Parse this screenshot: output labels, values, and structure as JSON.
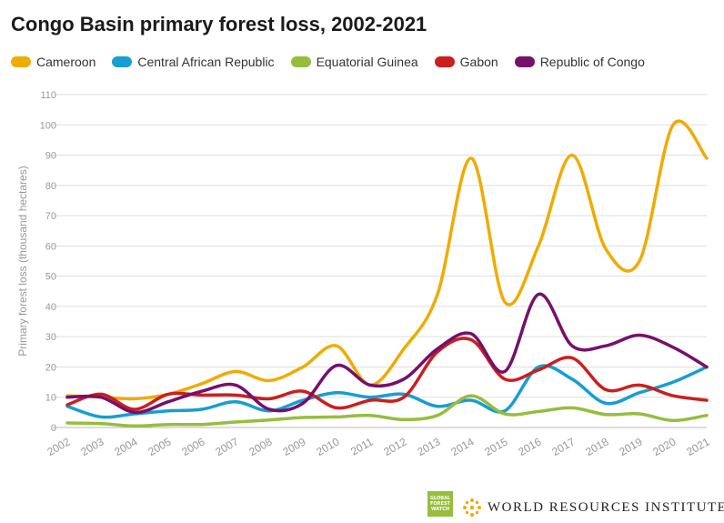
{
  "title": "Congo Basin primary forest loss, 2002-2021",
  "footer": {
    "gfw_lines": [
      "GLOBAL",
      "FOREST",
      "WATCH"
    ],
    "wri_text": "WORLD RESOURCES INSTITUTE"
  },
  "chart_data": {
    "type": "line",
    "title": "Congo Basin primary forest loss, 2002-2021",
    "xlabel": "",
    "ylabel": "Primary forest loss (thousand hectares)",
    "ylim": [
      0,
      110
    ],
    "yticks": [
      0,
      10,
      20,
      30,
      40,
      50,
      60,
      70,
      80,
      90,
      100,
      110
    ],
    "grid": true,
    "legend_position": "top-left",
    "x": [
      "2002",
      "2003",
      "2004",
      "2005",
      "2006",
      "2007",
      "2008",
      "2009",
      "2010",
      "2011",
      "2012",
      "2013",
      "2014",
      "2015",
      "2016",
      "2017",
      "2018",
      "2019",
      "2020",
      "2021"
    ],
    "series": [
      {
        "name": "Cameroon",
        "color": "#f0ab00",
        "values": [
          10.5,
          10,
          9.5,
          11,
          14.5,
          18.5,
          15.5,
          20,
          27,
          14,
          26,
          44,
          89,
          41.5,
          60,
          90,
          59,
          55,
          100,
          89
        ]
      },
      {
        "name": "Central African Republic",
        "color": "#169ed2",
        "values": [
          7,
          3.5,
          4.5,
          5.5,
          6,
          8.5,
          5.5,
          9,
          11.5,
          10,
          11,
          7,
          9,
          5.5,
          20,
          16,
          8,
          11.5,
          15,
          20
        ]
      },
      {
        "name": "Equatorial Guinea",
        "color": "#97bd3d",
        "values": [
          1.5,
          1.3,
          0.5,
          1,
          1,
          1.8,
          2.5,
          3.3,
          3.5,
          4,
          2.6,
          4,
          10.5,
          4.5,
          5.3,
          6.5,
          4.3,
          4.5,
          2.3,
          4
        ]
      },
      {
        "name": "Gabon",
        "color": "#cc1e1e",
        "values": [
          7.5,
          11,
          6,
          11,
          10.7,
          10.7,
          9.5,
          12,
          6.5,
          9,
          10,
          25,
          29,
          16,
          19,
          23,
          12.5,
          14,
          10.5,
          9
        ]
      },
      {
        "name": "Republic of Congo",
        "color": "#76106b",
        "values": [
          10,
          10,
          5,
          8.5,
          12,
          14,
          6,
          8,
          20.5,
          14,
          16,
          26,
          31,
          18.5,
          44,
          27,
          27,
          30.5,
          26.5,
          20
        ]
      }
    ]
  }
}
